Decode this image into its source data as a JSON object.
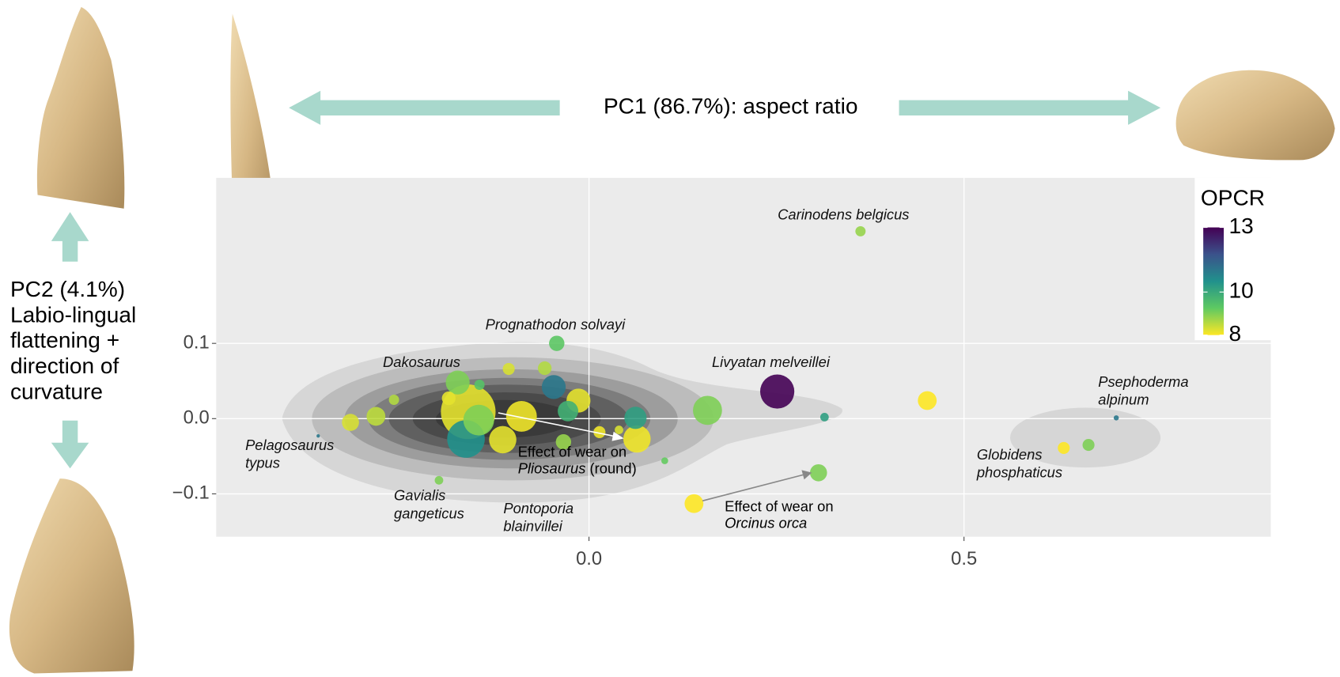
{
  "chart_data": {
    "type": "scatter",
    "title": "PC1 (86.7%): aspect ratio",
    "y_label_lines": [
      "PC2 (4.1%)",
      "Labio-lingual",
      "flattening +",
      "direction of",
      "curvature"
    ],
    "xlim": [
      -0.497,
      0.909
    ],
    "ylim": [
      -0.157,
      0.32
    ],
    "xticks": [
      {
        "value": 0,
        "label": "0.0"
      },
      0.5
    ],
    "yticks": [
      0.1,
      {
        "value": 0,
        "label": "0.0"
      },
      {
        "value": -0.1,
        "label": "−0.1"
      }
    ],
    "grid": true,
    "series": [
      {
        "x": [
          0.362,
          -0.043,
          0.251,
          0.451,
          0.314,
          0.158,
          0.703,
          0.633,
          0.666,
          0.306,
          0.14,
          -0.361,
          -0.318,
          -0.284,
          -0.26,
          -0.175,
          -0.161,
          -0.164,
          -0.147,
          -0.187,
          -0.107,
          -0.059,
          -0.047,
          -0.014,
          -0.09,
          -0.028,
          -0.115,
          -0.034,
          0.062,
          0.064,
          0.014,
          0.04,
          0.101,
          -0.2,
          -0.146
        ],
        "y": [
          0.249,
          0.1,
          0.036,
          0.024,
          0.002,
          0.011,
          0.001,
          -0.039,
          -0.035,
          -0.072,
          -0.113,
          -0.023,
          -0.005,
          0.003,
          0.025,
          0.048,
          0.009,
          -0.027,
          -0.002,
          0.027,
          0.066,
          0.067,
          0.042,
          0.024,
          0.003,
          0.01,
          -0.028,
          -0.031,
          0.001,
          -0.027,
          -0.018,
          -0.015,
          -0.056,
          -0.082,
          0.045
        ],
        "sizes": [
          6,
          9,
          20,
          11,
          5,
          17,
          3,
          7,
          7,
          10,
          11,
          2,
          10,
          11,
          6,
          14,
          32,
          22,
          18,
          8,
          7,
          8,
          14,
          14,
          18,
          12,
          16,
          9,
          13,
          16,
          7,
          5,
          4,
          5,
          6
        ],
        "opcr": [
          8.8,
          9.3,
          13,
          8,
          10.2,
          9,
          11,
          8,
          9,
          9,
          8,
          11,
          8.3,
          8.5,
          8.6,
          9,
          8.2,
          10.5,
          9,
          8.2,
          8.3,
          8.6,
          11,
          8.2,
          8.1,
          9.8,
          8.2,
          8.8,
          10.2,
          8.1,
          8.1,
          8.3,
          9.2,
          9,
          9.4
        ]
      }
    ],
    "colorbar": {
      "title": "OPCR",
      "lim": [
        8,
        13
      ],
      "ticks": [
        8,
        10,
        13
      ],
      "colors": [
        "#fde725",
        "#5ec962",
        "#21918c",
        "#3b528b",
        "#440154"
      ]
    },
    "annotations": [
      {
        "lines": [
          "Carinodens belgicus"
        ]
      },
      {
        "lines": [
          "Prognathodon solvayi"
        ]
      },
      {
        "lines": [
          "Dakosaurus"
        ]
      },
      {
        "lines": [
          "Livyatan melveillei"
        ]
      },
      {
        "lines": [
          "Psephoderma",
          "alpinum"
        ]
      },
      {
        "lines": [
          "Pelagosaurus",
          "typus"
        ]
      },
      {
        "lines": [
          "Gavialis",
          "gangeticus"
        ]
      },
      {
        "lines": [
          "Pontoporia",
          "blainvillei"
        ]
      },
      {
        "lines": [
          "Globidens",
          "phosphaticus"
        ]
      }
    ],
    "notes": [
      {
        "text": "Effect of wear on",
        "taxon": "Pliosaurus",
        "detail": "(round)"
      },
      {
        "text": "Effect of wear on",
        "taxon": "Orcinus orca"
      }
    ]
  }
}
